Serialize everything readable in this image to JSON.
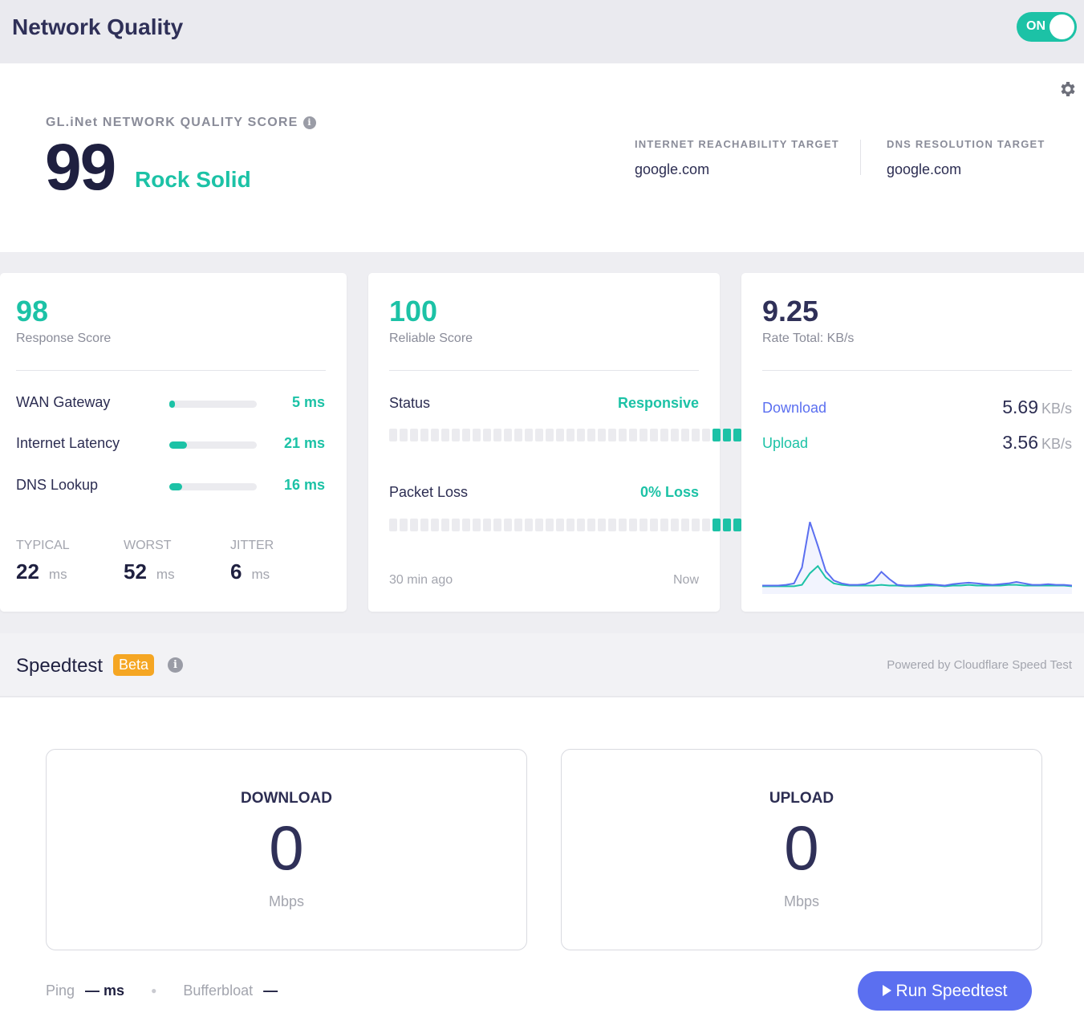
{
  "header": {
    "title": "Network Quality",
    "toggle_label": "ON"
  },
  "score": {
    "title": "GL.iNet NETWORK QUALITY SCORE",
    "value": "99",
    "grade": "Rock Solid",
    "targets": [
      {
        "label": "INTERNET REACHABILITY TARGET",
        "value": "google.com"
      },
      {
        "label": "DNS RESOLUTION TARGET",
        "value": "google.com"
      }
    ]
  },
  "response": {
    "score": "98",
    "label": "Response Score",
    "rows": [
      {
        "label": "WAN Gateway",
        "value": "5 ms",
        "level": 0.05
      },
      {
        "label": "Internet Latency",
        "value": "21 ms",
        "level": 0.2
      },
      {
        "label": "DNS Lookup",
        "value": "16 ms",
        "level": 0.15
      }
    ],
    "stats": [
      {
        "label": "TYPICAL",
        "value": "22",
        "unit": "ms"
      },
      {
        "label": "WORST",
        "value": "52",
        "unit": "ms"
      },
      {
        "label": "JITTER",
        "value": "6",
        "unit": "ms"
      }
    ]
  },
  "reliable": {
    "score": "100",
    "label": "Reliable Score",
    "status_label": "Status",
    "status_value": "Responsive",
    "status_segments": [
      "empty",
      "empty",
      "empty",
      "empty",
      "empty",
      "empty",
      "empty",
      "empty",
      "empty",
      "empty",
      "empty",
      "empty",
      "empty",
      "empty",
      "empty",
      "empty",
      "empty",
      "empty",
      "empty",
      "empty",
      "empty",
      "empty",
      "empty",
      "empty",
      "empty",
      "empty",
      "empty",
      "empty",
      "empty",
      "empty",
      "empty",
      "ok",
      "ok",
      "ok",
      "warn",
      "ok"
    ],
    "loss_label": "Packet Loss",
    "loss_value": "0% Loss",
    "loss_segments": [
      "empty",
      "empty",
      "empty",
      "empty",
      "empty",
      "empty",
      "empty",
      "empty",
      "empty",
      "empty",
      "empty",
      "empty",
      "empty",
      "empty",
      "empty",
      "empty",
      "empty",
      "empty",
      "empty",
      "empty",
      "empty",
      "empty",
      "empty",
      "empty",
      "empty",
      "empty",
      "empty",
      "empty",
      "empty",
      "empty",
      "empty",
      "ok",
      "ok",
      "ok",
      "ok",
      "ok"
    ],
    "time_start": "30 min ago",
    "time_end": "Now"
  },
  "rate": {
    "total": "9.25",
    "label": "Rate Total: KB/s",
    "download_label": "Download",
    "download_value": "5.69",
    "upload_label": "Upload",
    "upload_value": "3.56",
    "unit": "KB/s",
    "colors": {
      "download": "#5b6ff0",
      "upload": "#1cc2a6"
    },
    "download_series": [
      0.5,
      0.5,
      0.5,
      0.6,
      0.8,
      3.0,
      9.3,
      6.0,
      2.5,
      1.2,
      0.8,
      0.6,
      0.6,
      0.7,
      1.1,
      2.4,
      1.4,
      0.6,
      0.5,
      0.5,
      0.6,
      0.7,
      0.6,
      0.5,
      0.7,
      0.8,
      0.9,
      0.8,
      0.7,
      0.6,
      0.7,
      0.8,
      1.0,
      0.8,
      0.6,
      0.6,
      0.7,
      0.6,
      0.6,
      0.5
    ],
    "upload_series": [
      0.4,
      0.4,
      0.4,
      0.4,
      0.4,
      0.6,
      2.2,
      3.2,
      1.6,
      0.8,
      0.6,
      0.5,
      0.5,
      0.5,
      0.5,
      0.6,
      0.5,
      0.5,
      0.4,
      0.4,
      0.4,
      0.5,
      0.5,
      0.4,
      0.5,
      0.5,
      0.6,
      0.5,
      0.5,
      0.5,
      0.5,
      0.6,
      0.6,
      0.5,
      0.5,
      0.5,
      0.5,
      0.5,
      0.5,
      0.4
    ]
  },
  "speedtest": {
    "title": "Speedtest",
    "badge": "Beta",
    "powered_by": "Powered by Cloudflare Speed Test",
    "download": {
      "title": "DOWNLOAD",
      "value": "0",
      "unit": "Mbps"
    },
    "upload": {
      "title": "UPLOAD",
      "value": "0",
      "unit": "Mbps"
    },
    "ping_label": "Ping",
    "ping_value": "— ms",
    "bufferbloat_label": "Bufferbloat",
    "bufferbloat_value": "—",
    "run_button": "Run Speedtest"
  }
}
